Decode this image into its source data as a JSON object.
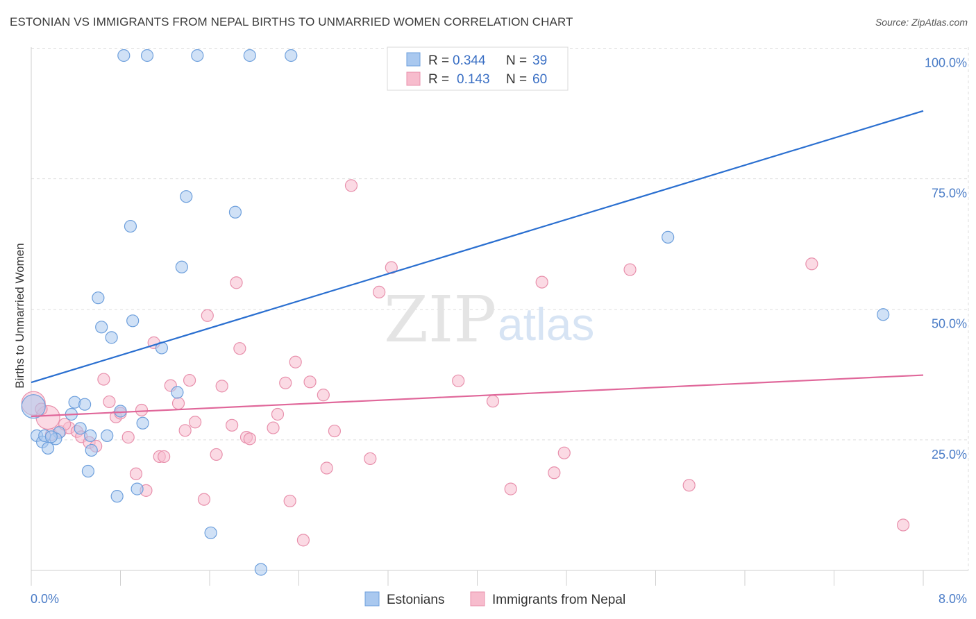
{
  "title": "ESTONIAN VS IMMIGRANTS FROM NEPAL BIRTHS TO UNMARRIED WOMEN CORRELATION CHART",
  "source": "Source: ZipAtlas.com",
  "watermark": {
    "zip": "ZIP",
    "atlas": "atlas"
  },
  "colors": {
    "estonians_fill": "#a9c8ef",
    "estonians_stroke": "#6d9fdc",
    "estonians_line": "#2a6fd0",
    "nepal_fill": "#f7bccd",
    "nepal_stroke": "#e890ac",
    "nepal_line": "#e0679a",
    "tick_text": "#4a7cc7",
    "grid": "#dddddd"
  },
  "legend_box": {
    "rows": [
      {
        "r_label": "R = ",
        "r_value": "0.344",
        "n_label": "N = ",
        "n_value": "39"
      },
      {
        "r_label": "R = ",
        "r_value": "0.143",
        "n_label": "N = ",
        "n_value": "60"
      }
    ]
  },
  "chart_data": {
    "type": "scatter",
    "title": "ESTONIAN VS IMMIGRANTS FROM NEPAL BIRTHS TO UNMARRIED WOMEN CORRELATION CHART",
    "xlabel": "",
    "ylabel": "Births to Unmarried Women",
    "xlim": [
      0,
      8
    ],
    "ylim": [
      0,
      100
    ],
    "x_tick_labels": [
      "0.0%",
      "8.0%"
    ],
    "y_ticks": [
      25,
      50,
      75,
      100
    ],
    "y_tick_labels": [
      "25.0%",
      "50.0%",
      "75.0%",
      "100.0%"
    ],
    "grid": true,
    "legend_placement": "bottom",
    "series": [
      {
        "name": "Estonians",
        "R": 0.344,
        "N": 39,
        "trend": {
          "x": [
            0,
            8
          ],
          "y": [
            36,
            88
          ]
        },
        "points": [
          {
            "x": 0.02,
            "y": 31.4,
            "big": true
          },
          {
            "x": 0.05,
            "y": 25.8
          },
          {
            "x": 0.1,
            "y": 24.6
          },
          {
            "x": 0.15,
            "y": 23.4
          },
          {
            "x": 0.12,
            "y": 25.8
          },
          {
            "x": 0.25,
            "y": 26.4
          },
          {
            "x": 0.22,
            "y": 25.2
          },
          {
            "x": 0.18,
            "y": 25.6
          },
          {
            "x": 0.36,
            "y": 29.9
          },
          {
            "x": 0.39,
            "y": 32.2
          },
          {
            "x": 0.44,
            "y": 27.2
          },
          {
            "x": 0.48,
            "y": 31.8
          },
          {
            "x": 0.53,
            "y": 25.8
          },
          {
            "x": 0.54,
            "y": 23.0
          },
          {
            "x": 0.51,
            "y": 19.0
          },
          {
            "x": 0.6,
            "y": 52.2
          },
          {
            "x": 0.63,
            "y": 46.6
          },
          {
            "x": 0.72,
            "y": 44.6
          },
          {
            "x": 0.8,
            "y": 30.5
          },
          {
            "x": 0.68,
            "y": 25.8
          },
          {
            "x": 0.77,
            "y": 14.2
          },
          {
            "x": 0.89,
            "y": 65.9
          },
          {
            "x": 0.91,
            "y": 47.8
          },
          {
            "x": 0.95,
            "y": 15.6
          },
          {
            "x": 1.0,
            "y": 28.2
          },
          {
            "x": 1.17,
            "y": 42.6
          },
          {
            "x": 1.31,
            "y": 34.1
          },
          {
            "x": 1.35,
            "y": 58.1
          },
          {
            "x": 1.39,
            "y": 71.6
          },
          {
            "x": 1.61,
            "y": 7.2
          },
          {
            "x": 1.83,
            "y": 68.6
          },
          {
            "x": 2.06,
            "y": 0.2
          },
          {
            "x": 0.83,
            "y": 98.6
          },
          {
            "x": 1.04,
            "y": 98.6
          },
          {
            "x": 1.49,
            "y": 98.6
          },
          {
            "x": 1.96,
            "y": 98.6
          },
          {
            "x": 2.33,
            "y": 98.6
          },
          {
            "x": 5.71,
            "y": 63.8
          },
          {
            "x": 7.64,
            "y": 49.0
          }
        ]
      },
      {
        "name": "Immigrants from Nepal",
        "R": 0.143,
        "N": 60,
        "trend": {
          "x": [
            0,
            8
          ],
          "y": [
            29.5,
            37.4
          ]
        },
        "points": [
          {
            "x": 0.02,
            "y": 32.0,
            "big": true
          },
          {
            "x": 0.15,
            "y": 29.3,
            "big": true
          },
          {
            "x": 0.18,
            "y": 26.0
          },
          {
            "x": 0.26,
            "y": 26.6
          },
          {
            "x": 0.34,
            "y": 27.3
          },
          {
            "x": 0.41,
            "y": 26.6
          },
          {
            "x": 0.45,
            "y": 25.6
          },
          {
            "x": 0.52,
            "y": 24.5
          },
          {
            "x": 0.58,
            "y": 23.8
          },
          {
            "x": 0.65,
            "y": 36.6
          },
          {
            "x": 0.7,
            "y": 32.3
          },
          {
            "x": 0.76,
            "y": 29.4
          },
          {
            "x": 0.8,
            "y": 30.1
          },
          {
            "x": 0.87,
            "y": 25.5
          },
          {
            "x": 0.94,
            "y": 18.5
          },
          {
            "x": 0.99,
            "y": 30.7
          },
          {
            "x": 1.03,
            "y": 15.3
          },
          {
            "x": 1.1,
            "y": 43.6
          },
          {
            "x": 1.15,
            "y": 21.8
          },
          {
            "x": 1.19,
            "y": 21.8
          },
          {
            "x": 1.25,
            "y": 35.4
          },
          {
            "x": 1.32,
            "y": 32.0
          },
          {
            "x": 1.38,
            "y": 26.8
          },
          {
            "x": 1.42,
            "y": 36.4
          },
          {
            "x": 1.47,
            "y": 28.4
          },
          {
            "x": 1.55,
            "y": 13.6
          },
          {
            "x": 1.58,
            "y": 48.8
          },
          {
            "x": 1.66,
            "y": 22.2
          },
          {
            "x": 1.71,
            "y": 35.3
          },
          {
            "x": 1.8,
            "y": 27.8
          },
          {
            "x": 1.84,
            "y": 55.1
          },
          {
            "x": 1.87,
            "y": 42.5
          },
          {
            "x": 1.93,
            "y": 25.5
          },
          {
            "x": 1.96,
            "y": 25.2
          },
          {
            "x": 2.17,
            "y": 27.3
          },
          {
            "x": 2.21,
            "y": 29.9
          },
          {
            "x": 2.28,
            "y": 35.9
          },
          {
            "x": 2.32,
            "y": 13.3
          },
          {
            "x": 2.37,
            "y": 39.9
          },
          {
            "x": 2.44,
            "y": 5.8
          },
          {
            "x": 2.5,
            "y": 36.1
          },
          {
            "x": 2.62,
            "y": 33.6
          },
          {
            "x": 2.65,
            "y": 19.6
          },
          {
            "x": 2.72,
            "y": 26.7
          },
          {
            "x": 2.87,
            "y": 73.7
          },
          {
            "x": 3.04,
            "y": 21.4
          },
          {
            "x": 3.12,
            "y": 53.3
          },
          {
            "x": 3.23,
            "y": 58.0
          },
          {
            "x": 3.83,
            "y": 36.3
          },
          {
            "x": 4.14,
            "y": 32.4
          },
          {
            "x": 4.3,
            "y": 15.6
          },
          {
            "x": 4.58,
            "y": 55.2
          },
          {
            "x": 4.69,
            "y": 18.7
          },
          {
            "x": 4.78,
            "y": 22.5
          },
          {
            "x": 5.37,
            "y": 57.6
          },
          {
            "x": 5.9,
            "y": 16.3
          },
          {
            "x": 7.0,
            "y": 58.7
          },
          {
            "x": 7.82,
            "y": 8.7
          },
          {
            "x": 0.3,
            "y": 28.0
          },
          {
            "x": 0.09,
            "y": 30.9
          }
        ]
      }
    ]
  }
}
